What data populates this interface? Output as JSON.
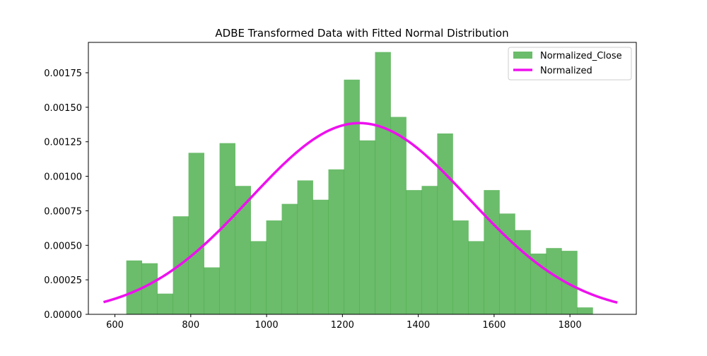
{
  "chart_data": {
    "type": "bar",
    "title": "ADBE Transformed Data with Fitted Normal Distribution",
    "xlabel": "",
    "ylabel": "",
    "xlim": [
      530,
      1975
    ],
    "ylim": [
      0,
      0.00197
    ],
    "x_ticks": [
      600,
      800,
      1000,
      1200,
      1400,
      1600,
      1800
    ],
    "x_tick_labels": [
      "600",
      "800",
      "1000",
      "1200",
      "1400",
      "1600",
      "1800"
    ],
    "y_ticks": [
      0,
      0.00025,
      0.0005,
      0.00075,
      0.001,
      0.00125,
      0.0015,
      0.00175
    ],
    "y_tick_labels": [
      "0.00000",
      "0.00025",
      "0.00050",
      "0.00075",
      "0.00100",
      "0.00125",
      "0.00150",
      "0.00175"
    ],
    "grid": false,
    "legend_position": "top-right",
    "histogram": {
      "name": "Normalized_Close",
      "color": "#2ca02c",
      "alpha": 0.7,
      "bin_start": 630,
      "bin_width": 41,
      "values": [
        0.00039,
        0.00037,
        0.00015,
        0.00071,
        0.00117,
        0.00034,
        0.00124,
        0.00093,
        0.00053,
        0.00068,
        0.0008,
        0.00097,
        0.00083,
        0.00105,
        0.0017,
        0.00126,
        0.0019,
        0.00143,
        0.0009,
        0.00093,
        0.00131,
        0.00068,
        0.00053,
        0.0009,
        0.00073,
        0.00061,
        0.00044,
        0.00048,
        0.00046,
        5e-05
      ]
    },
    "normal_fit": {
      "name": "Normalized",
      "color": "#ee10ee",
      "mean": 1245,
      "std": 288,
      "x_range": [
        570,
        1925
      ]
    }
  }
}
